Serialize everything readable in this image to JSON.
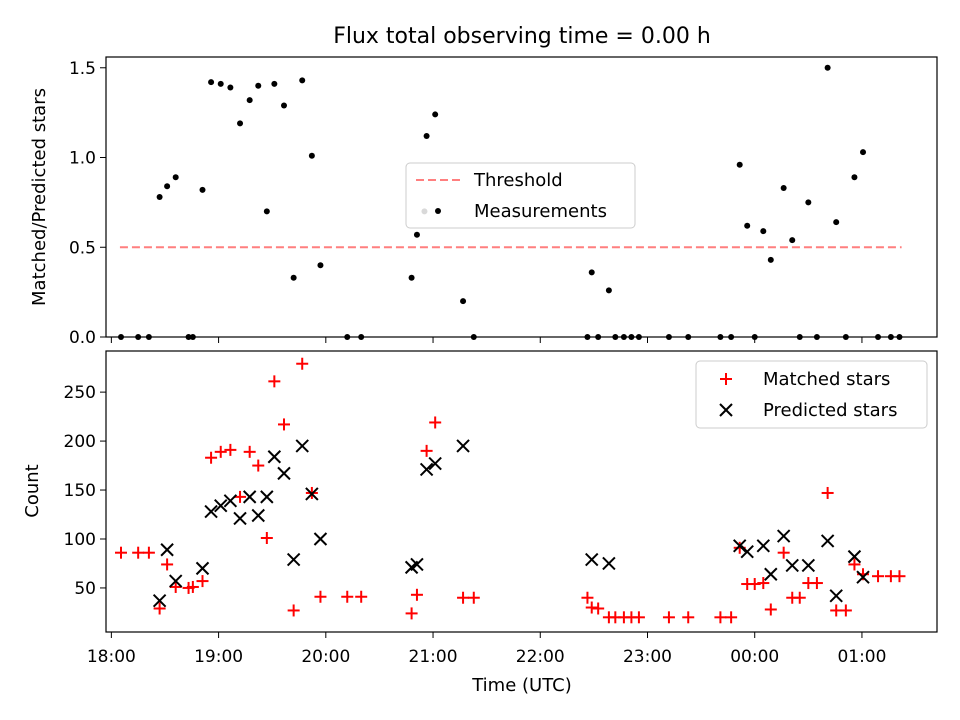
{
  "figure": {
    "title": "Flux total observing time = 0.00 h"
  },
  "chart_data": [
    {
      "type": "scatter",
      "panel": "top",
      "ylabel": "Matched/Predicted stars",
      "xlim": [
        17.95,
        25.7
      ],
      "ylim": [
        0,
        1.56
      ],
      "yticks": [
        0,
        0.5,
        1.0,
        1.5
      ],
      "ytick_labels": [
        "0.0",
        "0.5",
        "1.0",
        "1.5"
      ],
      "grid": false,
      "legend_position": "center",
      "threshold": {
        "name": "Threshold",
        "value": 0.5,
        "x_range": [
          18.08,
          25.37
        ],
        "color": "#ff7f7f",
        "style": "dashed"
      },
      "series": [
        {
          "name": "Measurements",
          "color": "#000000",
          "marker": "dot",
          "points": [
            [
              18.09,
              0
            ],
            [
              18.25,
              0
            ],
            [
              18.35,
              0
            ],
            [
              18.45,
              0.78
            ],
            [
              18.52,
              0.84
            ],
            [
              18.6,
              0.89
            ],
            [
              18.72,
              0
            ],
            [
              18.76,
              0
            ],
            [
              18.85,
              0.82
            ],
            [
              18.93,
              1.42
            ],
            [
              19.02,
              1.41
            ],
            [
              19.11,
              1.39
            ],
            [
              19.2,
              1.19
            ],
            [
              19.29,
              1.32
            ],
            [
              19.37,
              1.4
            ],
            [
              19.45,
              0.7
            ],
            [
              19.52,
              1.41
            ],
            [
              19.61,
              1.29
            ],
            [
              19.7,
              0.33
            ],
            [
              19.78,
              1.43
            ],
            [
              19.87,
              1.01
            ],
            [
              19.95,
              0.4
            ],
            [
              20.2,
              0
            ],
            [
              20.33,
              0
            ],
            [
              20.8,
              0.33
            ],
            [
              20.85,
              0.57
            ],
            [
              20.92,
              0.7
            ],
            [
              20.94,
              1.12
            ],
            [
              21.02,
              1.24
            ],
            [
              21.28,
              0.2
            ],
            [
              21.38,
              0
            ],
            [
              22.44,
              0
            ],
            [
              22.48,
              0.36
            ],
            [
              22.54,
              0
            ],
            [
              22.64,
              0.26
            ],
            [
              22.7,
              0
            ],
            [
              22.78,
              0
            ],
            [
              22.85,
              0
            ],
            [
              22.92,
              0
            ],
            [
              23.2,
              0
            ],
            [
              23.38,
              0
            ],
            [
              23.68,
              0
            ],
            [
              23.78,
              0
            ],
            [
              23.86,
              0.96
            ],
            [
              23.93,
              0.62
            ],
            [
              24.0,
              0
            ],
            [
              24.08,
              0.59
            ],
            [
              24.15,
              0.43
            ],
            [
              24.27,
              0.83
            ],
            [
              24.35,
              0.54
            ],
            [
              24.42,
              0
            ],
            [
              24.5,
              0.75
            ],
            [
              24.58,
              0
            ],
            [
              24.68,
              1.5
            ],
            [
              24.76,
              0.64
            ],
            [
              24.85,
              0
            ],
            [
              24.93,
              0.89
            ],
            [
              25.01,
              1.03
            ],
            [
              25.15,
              0
            ],
            [
              25.27,
              0
            ],
            [
              25.35,
              0
            ]
          ]
        }
      ]
    },
    {
      "type": "scatter",
      "panel": "bottom",
      "xlabel": "Time (UTC)",
      "ylabel": "Count",
      "xlim": [
        17.95,
        25.7
      ],
      "ylim": [
        5,
        292
      ],
      "xticks": [
        18,
        19,
        20,
        21,
        22,
        23,
        24,
        25
      ],
      "xtick_labels": [
        "18:00",
        "19:00",
        "20:00",
        "21:00",
        "22:00",
        "23:00",
        "00:00",
        "01:00"
      ],
      "yticks": [
        50,
        100,
        150,
        200,
        250
      ],
      "ytick_labels": [
        "50",
        "100",
        "150",
        "200",
        "250"
      ],
      "grid": false,
      "legend_position": "top-right",
      "series": [
        {
          "name": "Matched stars",
          "color": "#ff0000",
          "marker": "plus",
          "points": [
            [
              18.09,
              86
            ],
            [
              18.25,
              86
            ],
            [
              18.35,
              86
            ],
            [
              18.45,
              29
            ],
            [
              18.52,
              74
            ],
            [
              18.6,
              51
            ],
            [
              18.72,
              50
            ],
            [
              18.76,
              51
            ],
            [
              18.85,
              57
            ],
            [
              18.93,
              183
            ],
            [
              19.02,
              189
            ],
            [
              19.11,
              191
            ],
            [
              19.2,
              143
            ],
            [
              19.29,
              189
            ],
            [
              19.37,
              175
            ],
            [
              19.45,
              101
            ],
            [
              19.52,
              261
            ],
            [
              19.61,
              217
            ],
            [
              19.7,
              27
            ],
            [
              19.78,
              279
            ],
            [
              19.87,
              147
            ],
            [
              19.95,
              41
            ],
            [
              20.2,
              41
            ],
            [
              20.33,
              41
            ],
            [
              20.8,
              24
            ],
            [
              20.85,
              43
            ],
            [
              20.94,
              190
            ],
            [
              21.02,
              219
            ],
            [
              21.28,
              40
            ],
            [
              21.38,
              40
            ],
            [
              22.44,
              40
            ],
            [
              22.48,
              30
            ],
            [
              22.54,
              29
            ],
            [
              22.64,
              20
            ],
            [
              22.7,
              20
            ],
            [
              22.78,
              20
            ],
            [
              22.85,
              20
            ],
            [
              22.92,
              20
            ],
            [
              23.2,
              20
            ],
            [
              23.38,
              20
            ],
            [
              23.68,
              20
            ],
            [
              23.78,
              20
            ],
            [
              23.86,
              91
            ],
            [
              23.93,
              54
            ],
            [
              24.0,
              54
            ],
            [
              24.08,
              55
            ],
            [
              24.15,
              28
            ],
            [
              24.27,
              86
            ],
            [
              24.35,
              40
            ],
            [
              24.42,
              40
            ],
            [
              24.5,
              55
            ],
            [
              24.58,
              55
            ],
            [
              24.68,
              147
            ],
            [
              24.76,
              27
            ],
            [
              24.85,
              27
            ],
            [
              24.93,
              74
            ],
            [
              25.01,
              64
            ],
            [
              25.15,
              62
            ],
            [
              25.27,
              62
            ],
            [
              25.35,
              62
            ]
          ]
        },
        {
          "name": "Predicted stars",
          "color": "#000000",
          "marker": "x",
          "points": [
            [
              18.45,
              37
            ],
            [
              18.52,
              89
            ],
            [
              18.6,
              57
            ],
            [
              18.85,
              70
            ],
            [
              18.93,
              128
            ],
            [
              19.02,
              134
            ],
            [
              19.11,
              139
            ],
            [
              19.2,
              121
            ],
            [
              19.29,
              143
            ],
            [
              19.37,
              124
            ],
            [
              19.45,
              143
            ],
            [
              19.52,
              184
            ],
            [
              19.61,
              167
            ],
            [
              19.7,
              79
            ],
            [
              19.78,
              195
            ],
            [
              19.87,
              146
            ],
            [
              19.95,
              100
            ],
            [
              20.8,
              71
            ],
            [
              20.85,
              74
            ],
            [
              20.94,
              171
            ],
            [
              21.02,
              177
            ],
            [
              21.28,
              195
            ],
            [
              22.48,
              79
            ],
            [
              22.64,
              75
            ],
            [
              23.86,
              93
            ],
            [
              23.93,
              87
            ],
            [
              24.08,
              93
            ],
            [
              24.15,
              64
            ],
            [
              24.27,
              103
            ],
            [
              24.35,
              73
            ],
            [
              24.5,
              73
            ],
            [
              24.68,
              98
            ],
            [
              24.76,
              42
            ],
            [
              24.93,
              82
            ],
            [
              25.01,
              61
            ]
          ]
        }
      ]
    }
  ]
}
